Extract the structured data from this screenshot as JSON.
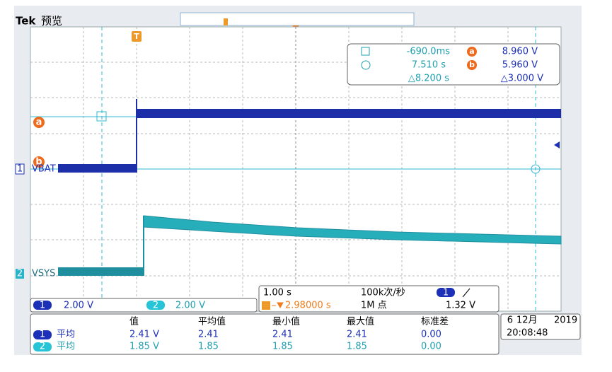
{
  "header": {
    "brand": "Tek",
    "mode": "预览"
  },
  "trigger": {
    "marker": "T",
    "source": "1",
    "position": "2.98000 s",
    "level": "1.32 V"
  },
  "cursors": {
    "labels": [
      "a",
      "b"
    ],
    "time1": "-690.0ms",
    "value_a": "8.960 V",
    "time2": "7.510 s",
    "value_b": "5.960 V",
    "delta_time": "△8.200 s",
    "delta_value": "△3.000 V"
  },
  "channels": [
    {
      "number": "1",
      "label": "VBAT",
      "scale": "2.00 V"
    },
    {
      "number": "2",
      "label": "VSYS",
      "scale": "2.00 V"
    }
  ],
  "acquisition": {
    "timebase": "1.00 s",
    "sample_rate": "100k次/秒",
    "record_length": "1M 点"
  },
  "measurements": {
    "columns": [
      "值",
      "平均值",
      "最小值",
      "最大值",
      "标准差"
    ],
    "rows": [
      {
        "channel": "1",
        "type": "平均",
        "cells": [
          "2.41 V",
          "2.41",
          "2.41",
          "2.41",
          "0.00"
        ]
      },
      {
        "channel": "2",
        "type": "平均",
        "cells": [
          "1.85 V",
          "1.85",
          "1.85",
          "1.85",
          "0.00"
        ]
      }
    ]
  },
  "datetime": {
    "day": "6",
    "month": "12月",
    "year": "2019",
    "time": "20:08:48"
  }
}
